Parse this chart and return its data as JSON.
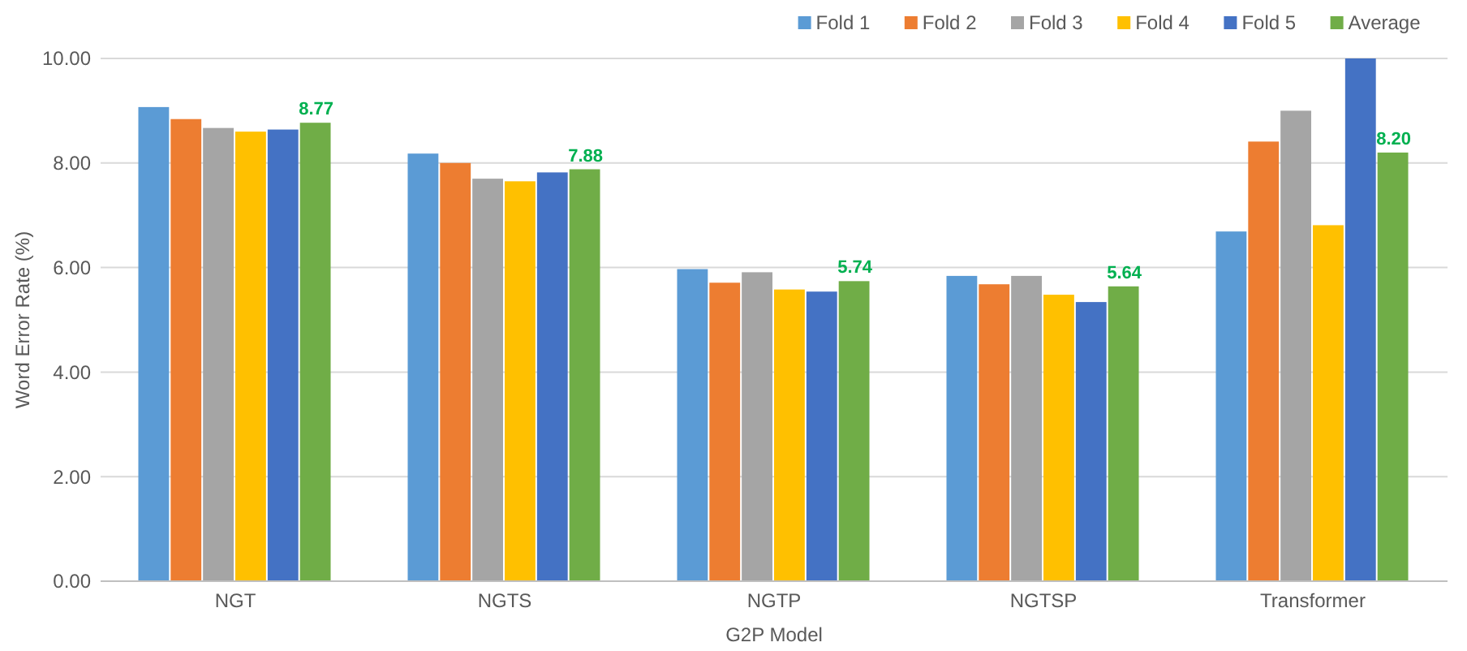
{
  "chart_data": {
    "type": "bar",
    "xlabel": "G2P Model",
    "ylabel": "Word Error Rate (%)",
    "categories": [
      "NGT",
      "NGTS",
      "NGTP",
      "NGTSP",
      "Transformer"
    ],
    "series": [
      {
        "name": "Fold 1",
        "color": "#5b9bd5",
        "values": [
          9.07,
          8.18,
          5.97,
          5.84,
          6.69
        ]
      },
      {
        "name": "Fold 2",
        "color": "#ed7d31",
        "values": [
          8.84,
          8.0,
          5.71,
          5.68,
          8.41
        ]
      },
      {
        "name": "Fold 3",
        "color": "#a5a5a5",
        "values": [
          8.67,
          7.7,
          5.91,
          5.84,
          9.0
        ]
      },
      {
        "name": "Fold 4",
        "color": "#ffc000",
        "values": [
          8.6,
          7.65,
          5.58,
          5.48,
          6.81
        ]
      },
      {
        "name": "Fold 5",
        "color": "#4472c4",
        "values": [
          8.64,
          7.82,
          5.54,
          5.34,
          10.0
        ]
      },
      {
        "name": "Average",
        "color": "#70ad47",
        "values": [
          8.77,
          7.88,
          5.74,
          5.64,
          8.2
        ],
        "value_labels": [
          "8.77",
          "7.88",
          "5.74",
          "5.64",
          "8.20"
        ]
      }
    ],
    "ylim": [
      0,
      10
    ],
    "yticks": [
      {
        "value": 0,
        "label": "0.00"
      },
      {
        "value": 2,
        "label": "2.00"
      },
      {
        "value": 4,
        "label": "4.00"
      },
      {
        "value": 6,
        "label": "6.00"
      },
      {
        "value": 8,
        "label": "8.00"
      },
      {
        "value": 10,
        "label": "10.00"
      }
    ],
    "grid": "y",
    "legend": "top right"
  }
}
